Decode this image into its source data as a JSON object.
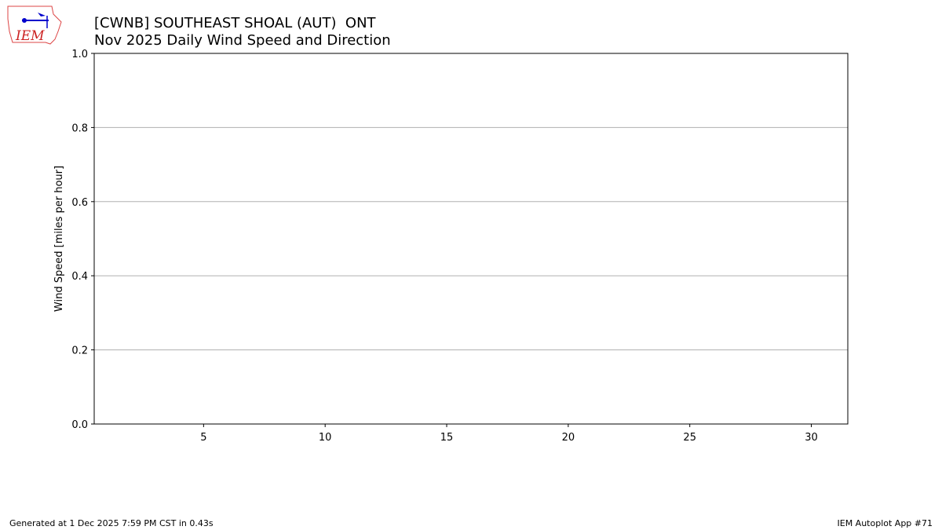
{
  "logo_text": "IEM",
  "chart_data": {
    "type": "bar",
    "title": "[CWNB] SOUTHEAST SHOAL (AUT)  ONT",
    "subtitle": "Nov 2025 Daily Wind Speed and Direction",
    "ylabel": "Wind Speed [miles per hour]",
    "xlim": [
      0.5,
      31.5
    ],
    "xticks": [
      5,
      10,
      15,
      20,
      25,
      30
    ],
    "ylim": [
      0,
      1
    ],
    "yticks": [
      {
        "value": 0,
        "label": "0.0"
      },
      {
        "value": 0.2,
        "label": "0.2"
      },
      {
        "value": 0.4,
        "label": "0.4"
      },
      {
        "value": 0.6,
        "label": "0.6"
      },
      {
        "value": 0.8,
        "label": "0.8"
      },
      {
        "value": 1,
        "label": "1.0"
      }
    ],
    "grid": true
  },
  "footer": {
    "left": "Generated at 1 Dec 2025 7:59 PM CST in 0.43s",
    "right": "IEM Autoplot App #71"
  }
}
